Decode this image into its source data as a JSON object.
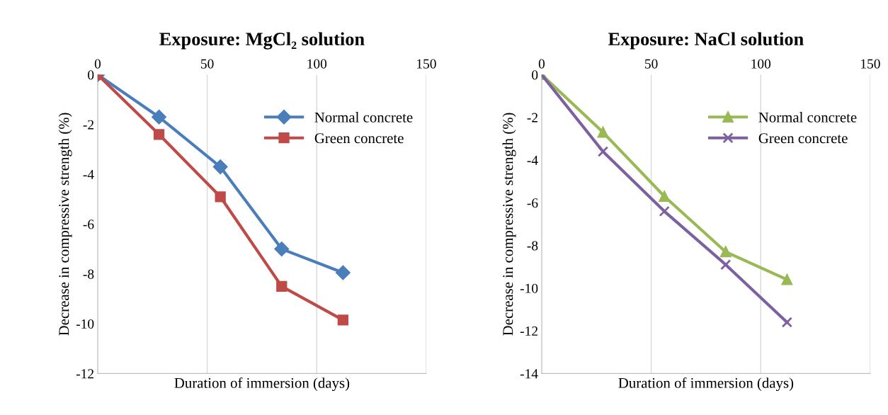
{
  "chart_data": [
    {
      "type": "line",
      "title": "Exposure: MgCl₂ solution",
      "xlabel": "Duration of immersion (days)",
      "ylabel": "Decrease in compressive strength (%)",
      "x": [
        0,
        28,
        56,
        84,
        112
      ],
      "xlim": [
        0,
        150
      ],
      "xticks": [
        0,
        50,
        100,
        150
      ],
      "ylim": [
        -12,
        0
      ],
      "yticks": [
        -12,
        -10,
        -8,
        -6,
        -4,
        -2,
        0
      ],
      "grid": "x",
      "legend": "top right",
      "line_style": "solid",
      "series": [
        {
          "name": "Normal concrete",
          "color": "#4a7ebb",
          "marker": "diamond",
          "values": [
            0,
            -1.7,
            -3.7,
            -7.0,
            -7.95
          ]
        },
        {
          "name": "Green concrete",
          "color": "#be4b48",
          "marker": "square",
          "values": [
            0,
            -2.4,
            -4.9,
            -8.5,
            -9.85
          ]
        }
      ]
    },
    {
      "type": "line",
      "title": "Exposure: NaCl solution",
      "xlabel": "Duration of immersion (days)",
      "ylabel": "Decrease in compressive strength (%)",
      "x": [
        0,
        28,
        56,
        84,
        112
      ],
      "xlim": [
        0,
        150
      ],
      "xticks": [
        0,
        50,
        100,
        150
      ],
      "ylim": [
        -14,
        0
      ],
      "yticks": [
        -14,
        -12,
        -10,
        -8,
        -6,
        -4,
        -2,
        0
      ],
      "grid": "x",
      "legend": "top right",
      "line_style": "solid",
      "series": [
        {
          "name": "Normal concrete",
          "color": "#98b954",
          "marker": "triangle",
          "values": [
            0,
            -2.7,
            -5.7,
            -8.3,
            -9.6
          ]
        },
        {
          "name": "Green concrete",
          "color": "#7d60a0",
          "marker": "cross",
          "values": [
            0,
            -3.6,
            -6.4,
            -8.9,
            -11.6
          ]
        }
      ]
    }
  ]
}
